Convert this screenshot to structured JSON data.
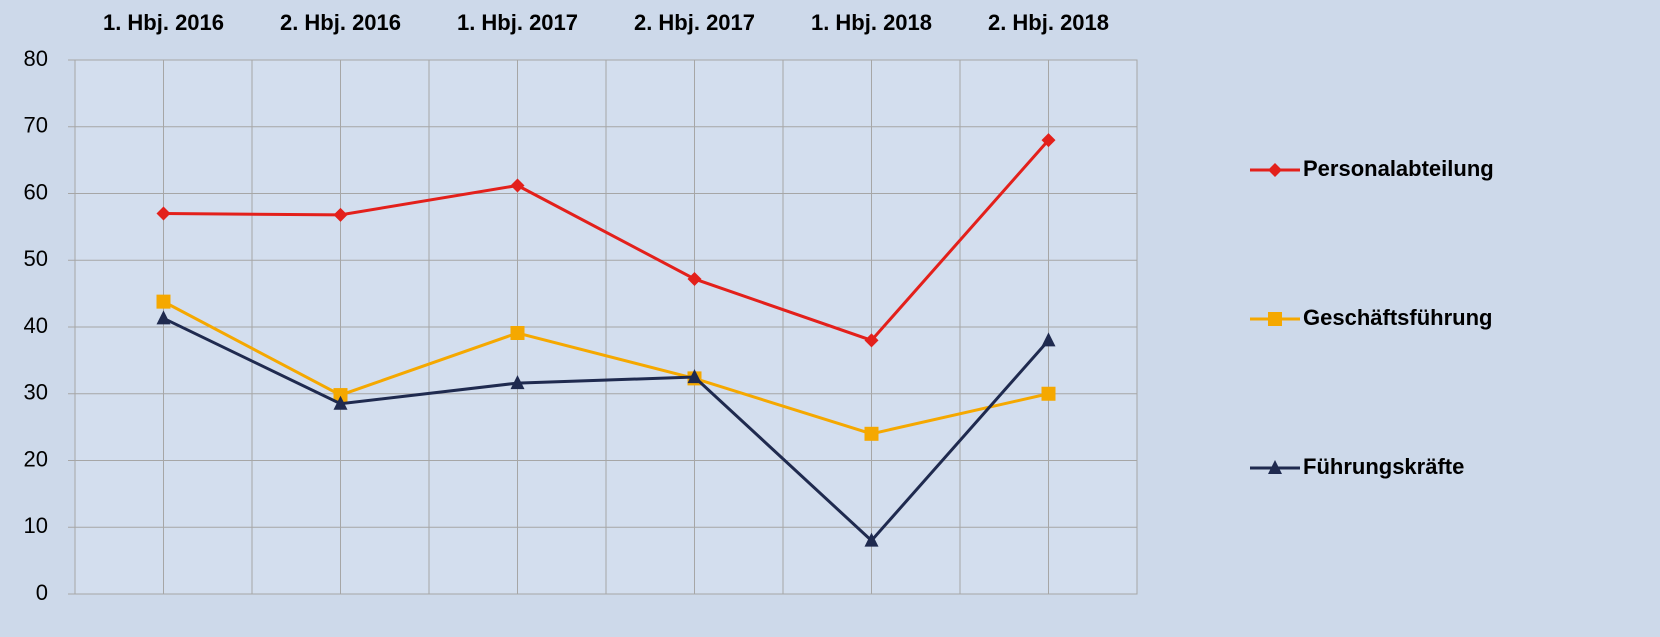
{
  "chart_data": {
    "type": "line",
    "categories": [
      "1. Hbj.  2016",
      "2. Hbj. 2016",
      "1. Hbj. 2017",
      "2. Hbj. 2017",
      "1. Hbj. 2018",
      "2. Hbj. 2018"
    ],
    "series": [
      {
        "name": "Personalabteilung",
        "color": "#e3201b",
        "marker": "diamond",
        "values": [
          57,
          56.8,
          61.2,
          47.2,
          38,
          68
        ]
      },
      {
        "name": "Geschäftsführung",
        "color": "#f5a800",
        "marker": "square",
        "values": [
          43.8,
          29.8,
          39.1,
          32.3,
          24,
          30
        ]
      },
      {
        "name": "Führungskräfte",
        "color": "#1f2a4f",
        "marker": "triangle",
        "values": [
          41.3,
          28.5,
          31.6,
          32.5,
          8,
          38
        ]
      }
    ],
    "ylim": [
      0,
      80
    ],
    "yticks": [
      0,
      10,
      20,
      30,
      40,
      50,
      60,
      70,
      80
    ],
    "grid": true,
    "legend": "right"
  }
}
